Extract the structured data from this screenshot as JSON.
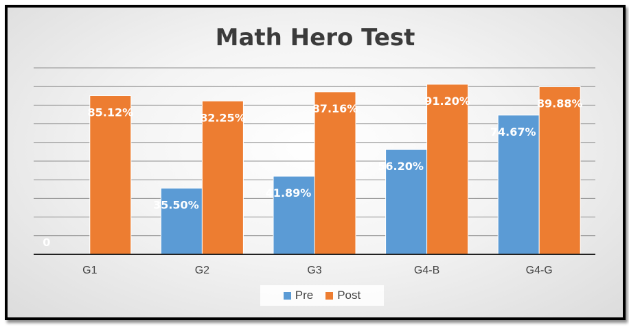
{
  "chart_data": {
    "type": "bar",
    "title": "Math Hero Test",
    "categories": [
      "G1",
      "G2",
      "G3",
      "G4-B",
      "G4-G"
    ],
    "series": [
      {
        "name": "Pre",
        "color": "#5b9bd5",
        "values": [
          0,
          35.5,
          41.89,
          56.2,
          74.67
        ],
        "labels": [
          "0",
          "35.50%",
          "41.89%",
          "56.20%",
          "74.67%"
        ]
      },
      {
        "name": "Post",
        "color": "#ed7d31",
        "values": [
          85.12,
          82.25,
          87.16,
          91.2,
          89.88
        ],
        "labels": [
          "85.12%",
          "82.25%",
          "87.16%",
          "91.20%",
          "89.88%"
        ]
      }
    ],
    "ylim": [
      0,
      100
    ],
    "grid": true,
    "legend_position": "bottom"
  }
}
